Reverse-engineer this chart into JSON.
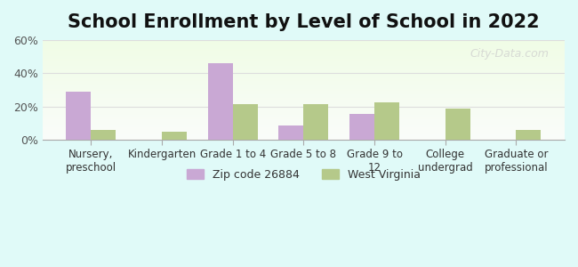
{
  "title": "School Enrollment by Level of School in 2022",
  "categories": [
    "Nursery,\npreschool",
    "Kindergarten",
    "Grade 1 to 4",
    "Grade 5 to 8",
    "Grade 9 to\n12",
    "College\nundergrad",
    "Graduate or\nprofessional"
  ],
  "zip_values": [
    29.0,
    0.0,
    46.0,
    8.5,
    15.5,
    0.0,
    0.0
  ],
  "wv_values": [
    6.0,
    5.0,
    21.5,
    21.5,
    22.5,
    19.0,
    6.0
  ],
  "zip_color": "#c9a8d4",
  "wv_color": "#b5c98a",
  "ylim": [
    0,
    60
  ],
  "yticks": [
    0,
    20,
    40,
    60
  ],
  "ytick_labels": [
    "0%",
    "20%",
    "40%",
    "60%"
  ],
  "bg_color": "#e0faf8",
  "plot_bg_gradient_top": "#f0fff0",
  "plot_bg_gradient_bottom": "#fffff0",
  "legend_zip_label": "Zip code 26884",
  "legend_wv_label": "West Virginia",
  "watermark": "City-Data.com",
  "title_fontsize": 15,
  "bar_width": 0.35
}
